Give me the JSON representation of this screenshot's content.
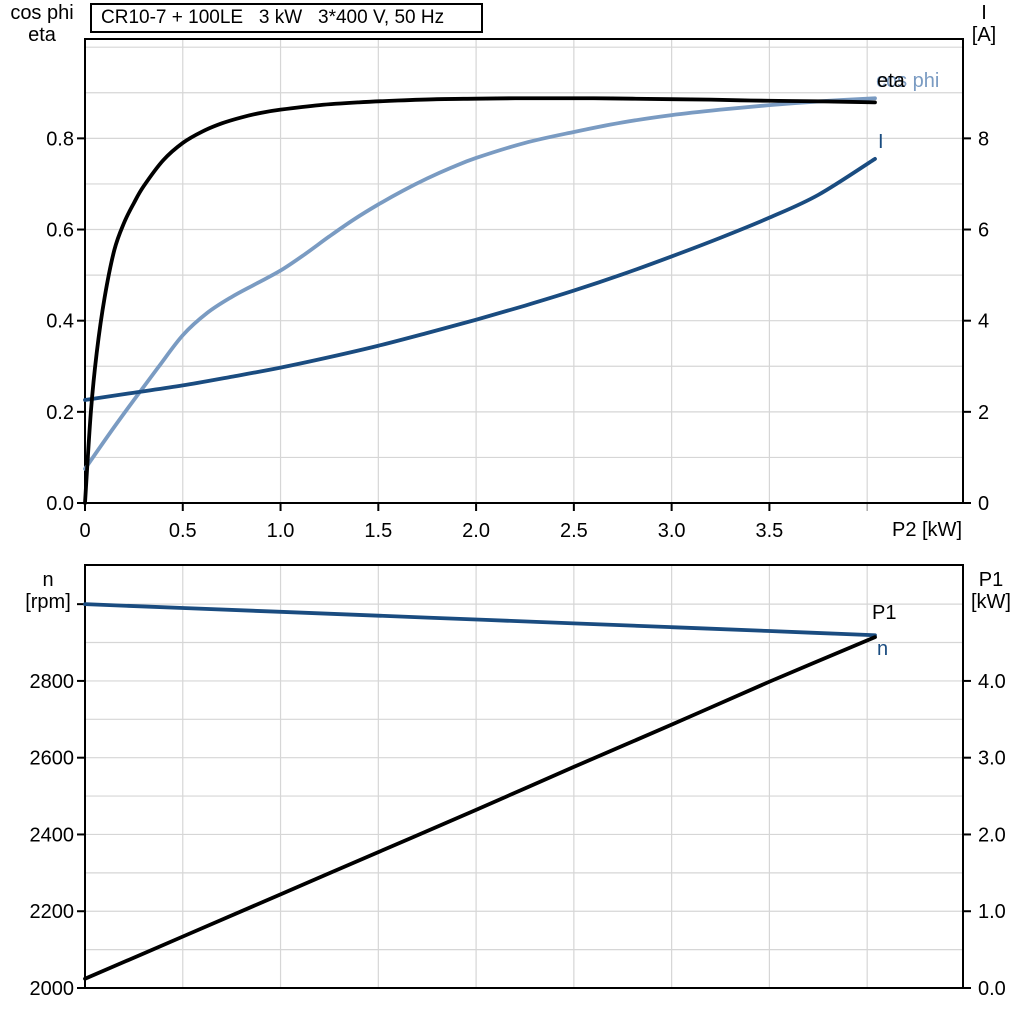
{
  "title": "CR10-7 + 100LE   3 kW   3*400 V, 50 Hz",
  "colors": {
    "eta": "#000000",
    "cos_phi": "#7A9BC2",
    "current": "#1A4C80",
    "grid": "#D6D6D6",
    "axis": "#000000",
    "background": "#FFFFFF"
  },
  "axis_corner_labels": {
    "top_left_line1": "cos phi",
    "top_left_line2": "eta",
    "top_right_line1": "I",
    "top_right_line2": "[A]",
    "bottom_left_line1": "n",
    "bottom_left_line2": "[rpm]",
    "bottom_right_line1": "P1",
    "bottom_right_line2": "[kW]",
    "x_axis_label": "P2 [kW]"
  },
  "chart_data": [
    {
      "type": "line",
      "title": "CR10-7 + 100LE   3 kW   3*400 V, 50 Hz",
      "xlabel": "P2 [kW]",
      "ylabel_left": "cos phi / eta",
      "ylabel_right": "I [A]",
      "x_range": [
        0,
        4.49
      ],
      "yleft_range": [
        0,
        1.018
      ],
      "yright_range": [
        0,
        10.18
      ],
      "grid": true,
      "x_grid": [
        0.5,
        1.0,
        1.5,
        2.0,
        2.5,
        3.0,
        3.5,
        4.0
      ],
      "yleft_grid": [
        0.1,
        0.2,
        0.3,
        0.4,
        0.5,
        0.6,
        0.7,
        0.8,
        0.9,
        1.0
      ],
      "x_ticks": [
        {
          "v": 0,
          "label": "0"
        },
        {
          "v": 0.5,
          "label": "0.5"
        },
        {
          "v": 1.0,
          "label": "1.0"
        },
        {
          "v": 1.5,
          "label": "1.5"
        },
        {
          "v": 2.0,
          "label": "2.0"
        },
        {
          "v": 2.5,
          "label": "2.5"
        },
        {
          "v": 3.0,
          "label": "3.0"
        },
        {
          "v": 3.5,
          "label": "3.5"
        }
      ],
      "yleft_ticks": [
        {
          "v": 0.0,
          "label": "0.0"
        },
        {
          "v": 0.2,
          "label": "0.2"
        },
        {
          "v": 0.4,
          "label": "0.4"
        },
        {
          "v": 0.6,
          "label": "0.6"
        },
        {
          "v": 0.8,
          "label": "0.8"
        }
      ],
      "yright_ticks": [
        {
          "v": 0,
          "label": "0"
        },
        {
          "v": 2,
          "label": "2"
        },
        {
          "v": 4,
          "label": "4"
        },
        {
          "v": 6,
          "label": "6"
        },
        {
          "v": 8,
          "label": "8"
        }
      ],
      "series": [
        {
          "name": "cos phi",
          "axis": "left",
          "color": "#7A9BC2",
          "points": [
            [
              0,
              0.075
            ],
            [
              0.125,
              0.152
            ],
            [
              0.25,
              0.226
            ],
            [
              0.375,
              0.298
            ],
            [
              0.5,
              0.368
            ],
            [
              0.625,
              0.417
            ],
            [
              0.75,
              0.452
            ],
            [
              0.875,
              0.481
            ],
            [
              1.0,
              0.51
            ],
            [
              1.125,
              0.546
            ],
            [
              1.25,
              0.585
            ],
            [
              1.375,
              0.622
            ],
            [
              1.5,
              0.655
            ],
            [
              1.625,
              0.685
            ],
            [
              1.75,
              0.712
            ],
            [
              1.875,
              0.736
            ],
            [
              2.0,
              0.757
            ],
            [
              2.25,
              0.79
            ],
            [
              2.5,
              0.814
            ],
            [
              2.75,
              0.835
            ],
            [
              3.0,
              0.851
            ],
            [
              3.25,
              0.863
            ],
            [
              3.5,
              0.873
            ],
            [
              3.75,
              0.881
            ],
            [
              4.04,
              0.888
            ]
          ]
        },
        {
          "name": "I",
          "axis": "right",
          "color": "#1A4C80",
          "points": [
            [
              0,
              2.26
            ],
            [
              0.25,
              2.42
            ],
            [
              0.5,
              2.58
            ],
            [
              0.75,
              2.77
            ],
            [
              1.0,
              2.97
            ],
            [
              1.25,
              3.2
            ],
            [
              1.5,
              3.45
            ],
            [
              1.75,
              3.73
            ],
            [
              2.0,
              4.02
            ],
            [
              2.25,
              4.33
            ],
            [
              2.5,
              4.66
            ],
            [
              2.75,
              5.02
            ],
            [
              3.0,
              5.41
            ],
            [
              3.25,
              5.82
            ],
            [
              3.5,
              6.26
            ],
            [
              3.75,
              6.76
            ],
            [
              4.04,
              7.55
            ]
          ]
        },
        {
          "name": "eta",
          "axis": "left",
          "color": "#000000",
          "points": [
            [
              0,
              0
            ],
            [
              0.03,
              0.2
            ],
            [
              0.06,
              0.33
            ],
            [
              0.1,
              0.45
            ],
            [
              0.15,
              0.555
            ],
            [
              0.2,
              0.615
            ],
            [
              0.25,
              0.658
            ],
            [
              0.3,
              0.695
            ],
            [
              0.4,
              0.752
            ],
            [
              0.5,
              0.79
            ],
            [
              0.6,
              0.815
            ],
            [
              0.7,
              0.833
            ],
            [
              0.8,
              0.846
            ],
            [
              0.9,
              0.856
            ],
            [
              1.0,
              0.863
            ],
            [
              1.2,
              0.873
            ],
            [
              1.4,
              0.879
            ],
            [
              1.6,
              0.883
            ],
            [
              1.8,
              0.886
            ],
            [
              2.0,
              0.887
            ],
            [
              2.2,
              0.888
            ],
            [
              2.4,
              0.888
            ],
            [
              2.6,
              0.888
            ],
            [
              2.8,
              0.887
            ],
            [
              3.0,
              0.886
            ],
            [
              3.2,
              0.885
            ],
            [
              3.4,
              0.883
            ],
            [
              3.6,
              0.882
            ],
            [
              3.8,
              0.881
            ],
            [
              4.04,
              0.879
            ]
          ]
        }
      ]
    },
    {
      "type": "line",
      "title": "",
      "xlabel": "",
      "ylabel_left": "n [rpm]",
      "ylabel_right": "P1 [kW]",
      "x_range": [
        0,
        4.49
      ],
      "yleft_range": [
        2000,
        3102
      ],
      "yright_range": [
        0,
        5.51
      ],
      "grid": true,
      "x_grid": [
        0.5,
        1.0,
        1.5,
        2.0,
        2.5,
        3.0,
        3.5,
        4.0
      ],
      "yleft_grid": [
        2100,
        2200,
        2300,
        2400,
        2500,
        2600,
        2700,
        2800,
        2900,
        3000
      ],
      "x_ticks": [],
      "yleft_ticks": [
        {
          "v": 2000,
          "label": "2000"
        },
        {
          "v": 2200,
          "label": "2200"
        },
        {
          "v": 2400,
          "label": "2400"
        },
        {
          "v": 2600,
          "label": "2600"
        },
        {
          "v": 2800,
          "label": "2800"
        },
        {
          "v": 3000,
          "label": ""
        }
      ],
      "yright_ticks": [
        {
          "v": 0,
          "label": "0.0"
        },
        {
          "v": 1,
          "label": "1.0"
        },
        {
          "v": 2,
          "label": "2.0"
        },
        {
          "v": 3,
          "label": "3.0"
        },
        {
          "v": 4,
          "label": "4.0"
        }
      ],
      "series": [
        {
          "name": "n",
          "axis": "left",
          "color": "#1A4C80",
          "points": [
            [
              0,
              3000
            ],
            [
              0.5,
              2990
            ],
            [
              1.0,
              2980
            ],
            [
              1.5,
              2970
            ],
            [
              2.0,
              2960
            ],
            [
              2.5,
              2950
            ],
            [
              3.0,
              2940
            ],
            [
              3.5,
              2930
            ],
            [
              4.04,
              2919
            ]
          ]
        },
        {
          "name": "P1",
          "axis": "right",
          "color": "#000000",
          "points": [
            [
              0,
              0.12
            ],
            [
              0.5,
              0.67
            ],
            [
              1.0,
              1.22
            ],
            [
              1.5,
              1.77
            ],
            [
              2.0,
              2.32
            ],
            [
              2.5,
              2.88
            ],
            [
              3.0,
              3.43
            ],
            [
              3.5,
              3.99
            ],
            [
              4.04,
              4.57
            ]
          ]
        }
      ]
    }
  ]
}
